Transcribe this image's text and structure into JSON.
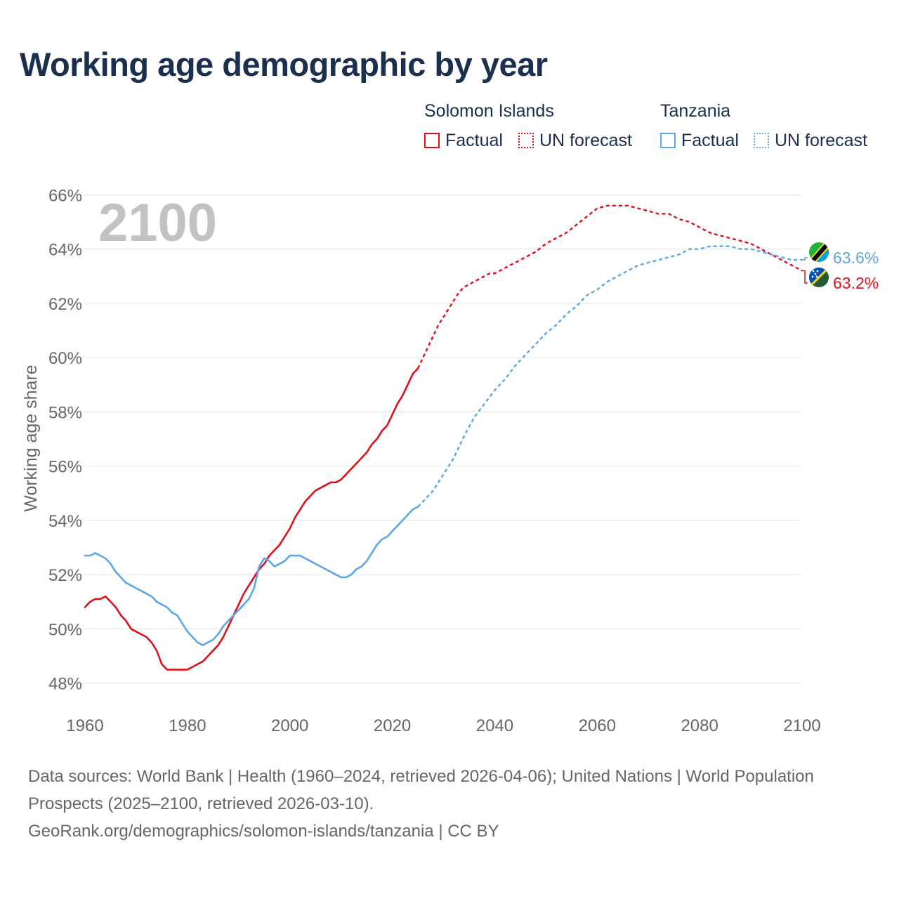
{
  "title": "Working age demographic by year",
  "legend": {
    "groups": [
      {
        "name": "Solomon Islands",
        "color": "#e0101a",
        "factual_label": "Factual",
        "forecast_label": "UN forecast"
      },
      {
        "name": "Tanzania",
        "color": "#5ba6e6",
        "factual_label": "Factual",
        "forecast_label": "UN forecast"
      }
    ]
  },
  "chart_data": {
    "type": "line",
    "title": "Working age demographic by year",
    "xlabel": "",
    "ylabel": "Working age share",
    "xlim": [
      1960,
      2100
    ],
    "ylim": [
      47.5,
      66.5
    ],
    "x_ticks": [
      1960,
      1980,
      2000,
      2020,
      2040,
      2060,
      2080,
      2100
    ],
    "y_ticks": [
      48,
      50,
      52,
      54,
      56,
      58,
      60,
      62,
      64,
      66
    ],
    "y_tick_labels": [
      "48%",
      "50%",
      "52%",
      "54%",
      "56%",
      "58%",
      "60%",
      "62%",
      "64%",
      "66%"
    ],
    "grid": true,
    "year_watermark": "2100",
    "forecast_start": 2025,
    "series": [
      {
        "name": "Solomon Islands",
        "color": "#e0101a",
        "end_label": "63.2%",
        "points": [
          [
            1960,
            50.8
          ],
          [
            1961,
            51.0
          ],
          [
            1962,
            51.1
          ],
          [
            1963,
            51.1
          ],
          [
            1964,
            51.2
          ],
          [
            1965,
            51.0
          ],
          [
            1966,
            50.8
          ],
          [
            1967,
            50.5
          ],
          [
            1968,
            50.3
          ],
          [
            1969,
            50.0
          ],
          [
            1970,
            49.9
          ],
          [
            1971,
            49.8
          ],
          [
            1972,
            49.7
          ],
          [
            1973,
            49.5
          ],
          [
            1974,
            49.2
          ],
          [
            1975,
            48.7
          ],
          [
            1976,
            48.5
          ],
          [
            1978,
            48.5
          ],
          [
            1980,
            48.5
          ],
          [
            1982,
            48.7
          ],
          [
            1983,
            48.8
          ],
          [
            1984,
            49.0
          ],
          [
            1985,
            49.2
          ],
          [
            1986,
            49.4
          ],
          [
            1987,
            49.7
          ],
          [
            1988,
            50.1
          ],
          [
            1989,
            50.5
          ],
          [
            1990,
            50.9
          ],
          [
            1991,
            51.3
          ],
          [
            1992,
            51.6
          ],
          [
            1993,
            51.9
          ],
          [
            1994,
            52.2
          ],
          [
            1995,
            52.4
          ],
          [
            1996,
            52.7
          ],
          [
            1997,
            52.9
          ],
          [
            1998,
            53.1
          ],
          [
            1999,
            53.4
          ],
          [
            2000,
            53.7
          ],
          [
            2001,
            54.1
          ],
          [
            2002,
            54.4
          ],
          [
            2003,
            54.7
          ],
          [
            2004,
            54.9
          ],
          [
            2005,
            55.1
          ],
          [
            2006,
            55.2
          ],
          [
            2007,
            55.3
          ],
          [
            2008,
            55.4
          ],
          [
            2009,
            55.4
          ],
          [
            2010,
            55.5
          ],
          [
            2011,
            55.7
          ],
          [
            2012,
            55.9
          ],
          [
            2013,
            56.1
          ],
          [
            2014,
            56.3
          ],
          [
            2015,
            56.5
          ],
          [
            2016,
            56.8
          ],
          [
            2017,
            57.0
          ],
          [
            2018,
            57.3
          ],
          [
            2019,
            57.5
          ],
          [
            2020,
            57.9
          ],
          [
            2021,
            58.3
          ],
          [
            2022,
            58.6
          ],
          [
            2023,
            59.0
          ],
          [
            2024,
            59.4
          ],
          [
            2025,
            59.6
          ],
          [
            2026,
            60.0
          ],
          [
            2027,
            60.4
          ],
          [
            2028,
            60.8
          ],
          [
            2029,
            61.2
          ],
          [
            2030,
            61.5
          ],
          [
            2031,
            61.8
          ],
          [
            2032,
            62.1
          ],
          [
            2033,
            62.4
          ],
          [
            2034,
            62.6
          ],
          [
            2035,
            62.7
          ],
          [
            2036,
            62.8
          ],
          [
            2037,
            62.9
          ],
          [
            2038,
            63.0
          ],
          [
            2039,
            63.1
          ],
          [
            2040,
            63.1
          ],
          [
            2042,
            63.3
          ],
          [
            2044,
            63.5
          ],
          [
            2046,
            63.7
          ],
          [
            2048,
            63.9
          ],
          [
            2050,
            64.2
          ],
          [
            2052,
            64.4
          ],
          [
            2054,
            64.6
          ],
          [
            2056,
            64.9
          ],
          [
            2058,
            65.2
          ],
          [
            2060,
            65.5
          ],
          [
            2062,
            65.6
          ],
          [
            2064,
            65.6
          ],
          [
            2066,
            65.6
          ],
          [
            2068,
            65.5
          ],
          [
            2070,
            65.4
          ],
          [
            2072,
            65.3
          ],
          [
            2074,
            65.3
          ],
          [
            2076,
            65.1
          ],
          [
            2078,
            65.0
          ],
          [
            2080,
            64.8
          ],
          [
            2082,
            64.6
          ],
          [
            2084,
            64.5
          ],
          [
            2086,
            64.4
          ],
          [
            2088,
            64.3
          ],
          [
            2090,
            64.2
          ],
          [
            2092,
            64.0
          ],
          [
            2094,
            63.8
          ],
          [
            2096,
            63.6
          ],
          [
            2098,
            63.4
          ],
          [
            2099,
            63.3
          ],
          [
            2100,
            63.2
          ]
        ]
      },
      {
        "name": "Tanzania",
        "color": "#5ba6e6",
        "end_label": "63.6%",
        "points": [
          [
            1960,
            52.7
          ],
          [
            1961,
            52.7
          ],
          [
            1962,
            52.8
          ],
          [
            1963,
            52.7
          ],
          [
            1964,
            52.6
          ],
          [
            1965,
            52.4
          ],
          [
            1966,
            52.1
          ],
          [
            1967,
            51.9
          ],
          [
            1968,
            51.7
          ],
          [
            1970,
            51.5
          ],
          [
            1972,
            51.3
          ],
          [
            1973,
            51.2
          ],
          [
            1974,
            51.0
          ],
          [
            1976,
            50.8
          ],
          [
            1977,
            50.6
          ],
          [
            1978,
            50.5
          ],
          [
            1979,
            50.2
          ],
          [
            1980,
            49.9
          ],
          [
            1981,
            49.7
          ],
          [
            1982,
            49.5
          ],
          [
            1983,
            49.4
          ],
          [
            1984,
            49.5
          ],
          [
            1985,
            49.6
          ],
          [
            1986,
            49.8
          ],
          [
            1987,
            50.1
          ],
          [
            1988,
            50.3
          ],
          [
            1989,
            50.5
          ],
          [
            1990,
            50.7
          ],
          [
            1991,
            50.9
          ],
          [
            1992,
            51.1
          ],
          [
            1993,
            51.5
          ],
          [
            1994,
            52.3
          ],
          [
            1995,
            52.6
          ],
          [
            1996,
            52.5
          ],
          [
            1997,
            52.3
          ],
          [
            1998,
            52.4
          ],
          [
            1999,
            52.5
          ],
          [
            2000,
            52.7
          ],
          [
            2001,
            52.7
          ],
          [
            2002,
            52.7
          ],
          [
            2004,
            52.5
          ],
          [
            2006,
            52.3
          ],
          [
            2008,
            52.1
          ],
          [
            2010,
            51.9
          ],
          [
            2011,
            51.9
          ],
          [
            2012,
            52.0
          ],
          [
            2013,
            52.2
          ],
          [
            2014,
            52.3
          ],
          [
            2015,
            52.5
          ],
          [
            2016,
            52.8
          ],
          [
            2017,
            53.1
          ],
          [
            2018,
            53.3
          ],
          [
            2019,
            53.4
          ],
          [
            2020,
            53.6
          ],
          [
            2022,
            54.0
          ],
          [
            2024,
            54.4
          ],
          [
            2025,
            54.5
          ],
          [
            2026,
            54.7
          ],
          [
            2028,
            55.1
          ],
          [
            2030,
            55.7
          ],
          [
            2032,
            56.3
          ],
          [
            2034,
            57.1
          ],
          [
            2036,
            57.8
          ],
          [
            2038,
            58.3
          ],
          [
            2040,
            58.8
          ],
          [
            2042,
            59.2
          ],
          [
            2044,
            59.7
          ],
          [
            2046,
            60.1
          ],
          [
            2048,
            60.5
          ],
          [
            2050,
            60.9
          ],
          [
            2052,
            61.2
          ],
          [
            2054,
            61.6
          ],
          [
            2056,
            61.9
          ],
          [
            2058,
            62.3
          ],
          [
            2060,
            62.5
          ],
          [
            2062,
            62.8
          ],
          [
            2064,
            63.0
          ],
          [
            2066,
            63.2
          ],
          [
            2068,
            63.4
          ],
          [
            2070,
            63.5
          ],
          [
            2072,
            63.6
          ],
          [
            2074,
            63.7
          ],
          [
            2076,
            63.8
          ],
          [
            2078,
            64.0
          ],
          [
            2080,
            64.0
          ],
          [
            2082,
            64.1
          ],
          [
            2084,
            64.1
          ],
          [
            2086,
            64.1
          ],
          [
            2088,
            64.0
          ],
          [
            2090,
            64.0
          ],
          [
            2092,
            63.9
          ],
          [
            2094,
            63.8
          ],
          [
            2096,
            63.7
          ],
          [
            2098,
            63.6
          ],
          [
            2100,
            63.6
          ]
        ]
      }
    ]
  },
  "footer": {
    "sources": "Data sources: World Bank | Health (1960–2024, retrieved 2026-04-06); United Nations | World Population Prospects (2025–2100, retrieved 2026-03-10).",
    "attribution": "GeoRank.org/demographics/solomon-islands/tanzania | CC BY"
  }
}
